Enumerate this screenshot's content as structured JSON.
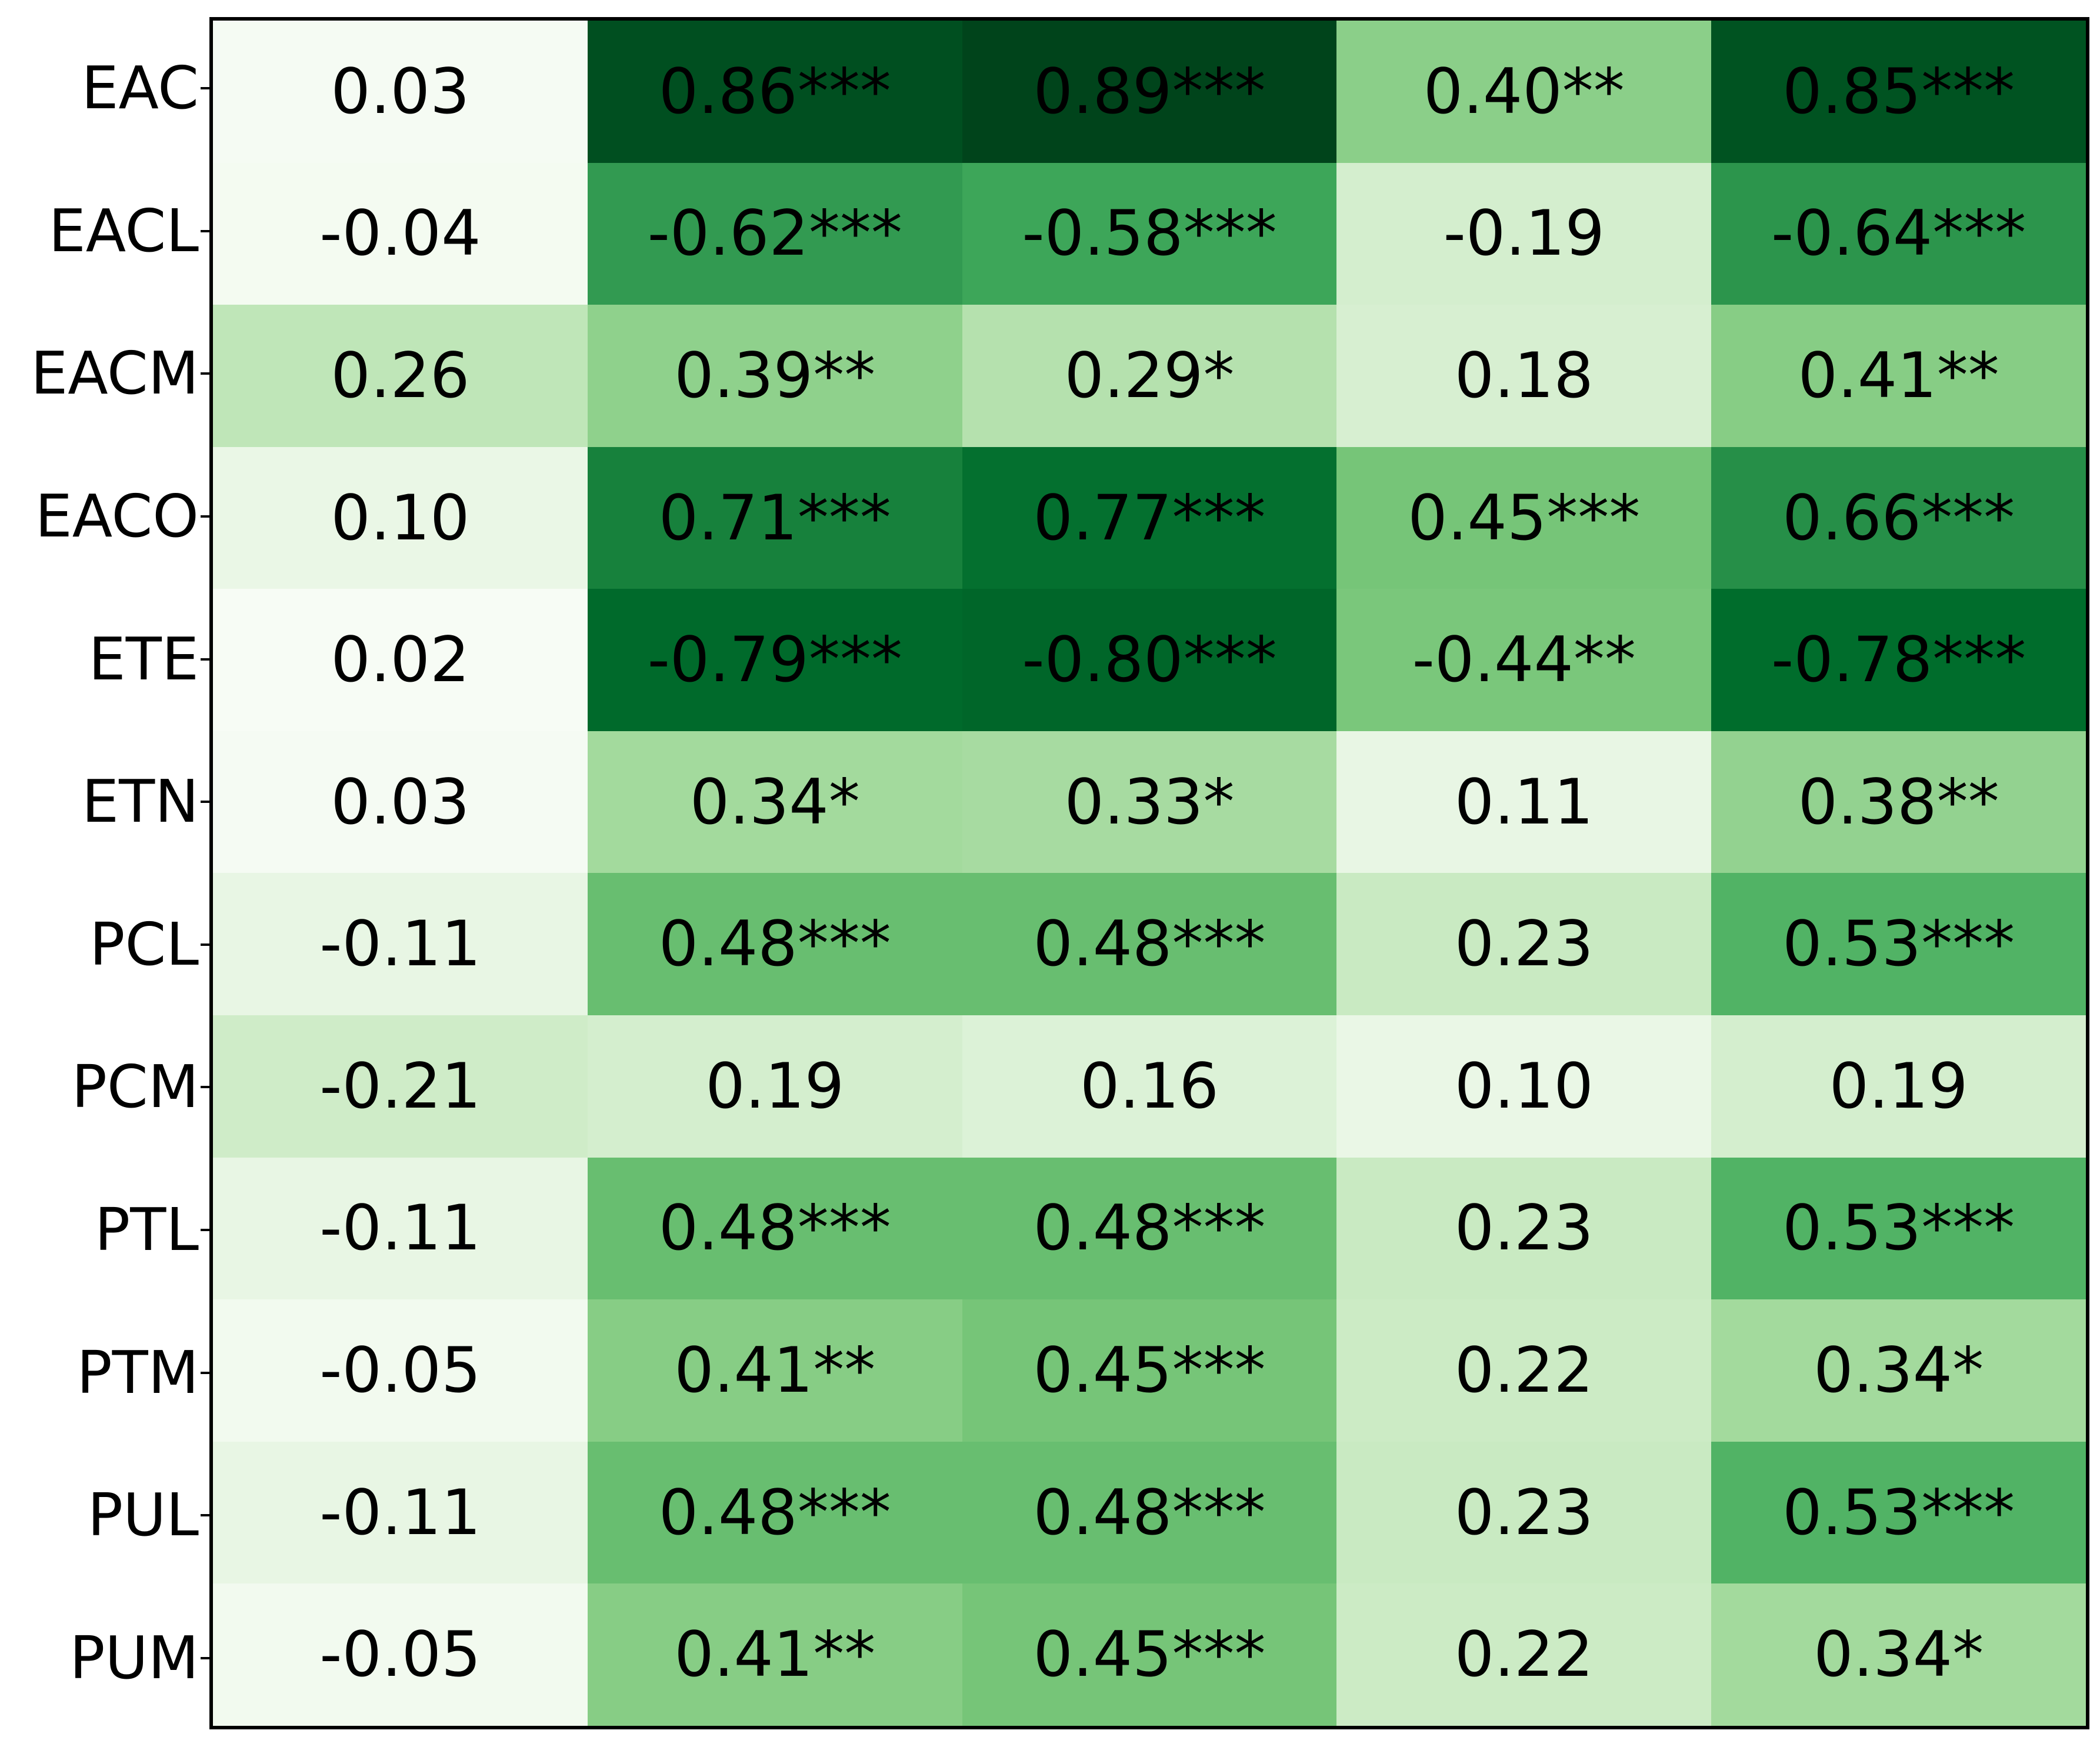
{
  "figure": {
    "background_color": "#ffffff",
    "border_color": "#000000",
    "text_color": "#000000"
  },
  "chart_data": {
    "type": "heatmap",
    "title": "",
    "xlabel": "",
    "ylabel": "",
    "legend": "none",
    "grid": false,
    "colormap": "Greens",
    "color_scale_note": "cell shade maps to absolute value of coefficient; ~0.02 lightest, 0.89 darkest",
    "rows": [
      "EAC",
      "EACL",
      "EACM",
      "EACO",
      "ETE",
      "ETN",
      "PCL",
      "PCM",
      "PTL",
      "PTM",
      "PUL",
      "PUM"
    ],
    "columns": [
      "",
      "",
      "",
      "",
      ""
    ],
    "cell_labels": [
      [
        "0.03",
        "0.86***",
        "0.89***",
        "0.40**",
        "0.85***"
      ],
      [
        "-0.04",
        "-0.62***",
        "-0.58***",
        "-0.19",
        "-0.64***"
      ],
      [
        "0.26",
        "0.39**",
        "0.29*",
        "0.18",
        "0.41**"
      ],
      [
        "0.10",
        "0.71***",
        "0.77***",
        "0.45***",
        "0.66***"
      ],
      [
        "0.02",
        "-0.79***",
        "-0.80***",
        "-0.44**",
        "-0.78***"
      ],
      [
        "0.03",
        "0.34*",
        "0.33*",
        "0.11",
        "0.38**"
      ],
      [
        "-0.11",
        "0.48***",
        "0.48***",
        "0.23",
        "0.53***"
      ],
      [
        "-0.21",
        "0.19",
        "0.16",
        "0.10",
        "0.19"
      ],
      [
        "-0.11",
        "0.48***",
        "0.48***",
        "0.23",
        "0.53***"
      ],
      [
        "-0.05",
        "0.41**",
        "0.45***",
        "0.22",
        "0.34*"
      ],
      [
        "-0.11",
        "0.48***",
        "0.48***",
        "0.23",
        "0.53***"
      ],
      [
        "-0.05",
        "0.41**",
        "0.45***",
        "0.22",
        "0.34*"
      ]
    ],
    "values": [
      [
        0.03,
        0.86,
        0.89,
        0.4,
        0.85
      ],
      [
        -0.04,
        -0.62,
        -0.58,
        -0.19,
        -0.64
      ],
      [
        0.26,
        0.39,
        0.29,
        0.18,
        0.41
      ],
      [
        0.1,
        0.71,
        0.77,
        0.45,
        0.66
      ],
      [
        0.02,
        -0.79,
        -0.8,
        -0.44,
        -0.78
      ],
      [
        0.03,
        0.34,
        0.33,
        0.11,
        0.38
      ],
      [
        -0.11,
        0.48,
        0.48,
        0.23,
        0.53
      ],
      [
        -0.21,
        0.19,
        0.16,
        0.1,
        0.19
      ],
      [
        -0.11,
        0.48,
        0.48,
        0.23,
        0.53
      ],
      [
        -0.05,
        0.41,
        0.45,
        0.22,
        0.34
      ],
      [
        -0.11,
        0.48,
        0.48,
        0.23,
        0.53
      ],
      [
        -0.05,
        0.41,
        0.45,
        0.22,
        0.34
      ]
    ],
    "cell_colors": [
      [
        "#F5FBF3",
        "#004F20",
        "#00441B",
        "#8BCF89",
        "#005321"
      ],
      [
        "#F4FBF1",
        "#329A51",
        "#3DA659",
        "#D4EECE",
        "#2C954C"
      ],
      [
        "#BFE6B8",
        "#8FD18C",
        "#B5E1AE",
        "#D7EFD1",
        "#87CD85"
      ],
      [
        "#EAF7E6",
        "#17813C",
        "#04702F",
        "#76C578",
        "#268F48"
      ],
      [
        "#F7FCF5",
        "#006A2B",
        "#006629",
        "#7AC77B",
        "#006D2C"
      ],
      [
        "#F5FBF3",
        "#A3DA9D",
        "#A7DBA1",
        "#E8F6E4",
        "#93D290"
      ],
      [
        "#E8F6E4",
        "#68BE70",
        "#68BE70",
        "#C9EAC2",
        "#51B365"
      ],
      [
        "#CFECC8",
        "#D4EECE",
        "#DCF2D7",
        "#EAF7E6",
        "#D4EECE"
      ],
      [
        "#E8F6E4",
        "#68BE70",
        "#68BE70",
        "#C9EAC2",
        "#51B365"
      ],
      [
        "#F2FAEF",
        "#87CD85",
        "#76C578",
        "#CCEBC5",
        "#A3DA9D"
      ],
      [
        "#E8F6E4",
        "#68BE70",
        "#68BE70",
        "#C9EAC2",
        "#51B365"
      ],
      [
        "#F2FAEF",
        "#87CD85",
        "#76C578",
        "#CCEBC5",
        "#A3DA9D"
      ]
    ]
  }
}
